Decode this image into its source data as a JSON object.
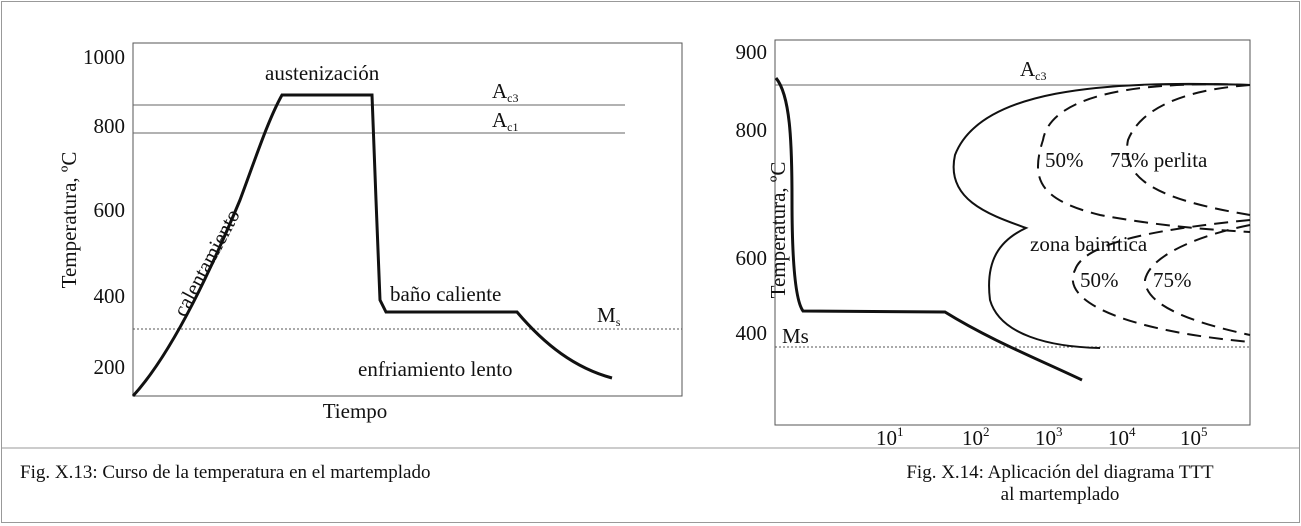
{
  "figure1": {
    "y_label": "Temperatura, ºC",
    "yticks": [
      "1000",
      "800",
      "600",
      "400",
      "200"
    ],
    "x_label": "Tiempo",
    "austenizacion": "austenización",
    "calentamiento": "calentamiento",
    "bano": "baño caliente",
    "enfriamiento": "enfriamiento lento",
    "ac3": {
      "base": "A",
      "sub": "c3"
    },
    "ac1": {
      "base": "A",
      "sub": "c1"
    },
    "ms": {
      "base": "M",
      "sub": "s"
    },
    "caption": "Fig. X.13: Curso de la temperatura en el martemplado"
  },
  "figure2": {
    "y_label": "Temperatura, ºC",
    "yticks": [
      "900",
      "800",
      "600",
      "400"
    ],
    "xticks": [
      {
        "base": "10",
        "exp": "1"
      },
      {
        "base": "10",
        "exp": "2"
      },
      {
        "base": "10",
        "exp": "3"
      },
      {
        "base": "10",
        "exp": "4"
      },
      {
        "base": "10",
        "exp": "5"
      }
    ],
    "ac3": {
      "base": "A",
      "sub": "c3"
    },
    "ms": "Ms",
    "p50": "50%",
    "p75_perlita": "75% perlita",
    "zona": "zona bainítica",
    "b50": "50%",
    "b75": "75%",
    "caption": "Fig. X.14: Aplicación del diagrama TTT al martemplado"
  }
}
